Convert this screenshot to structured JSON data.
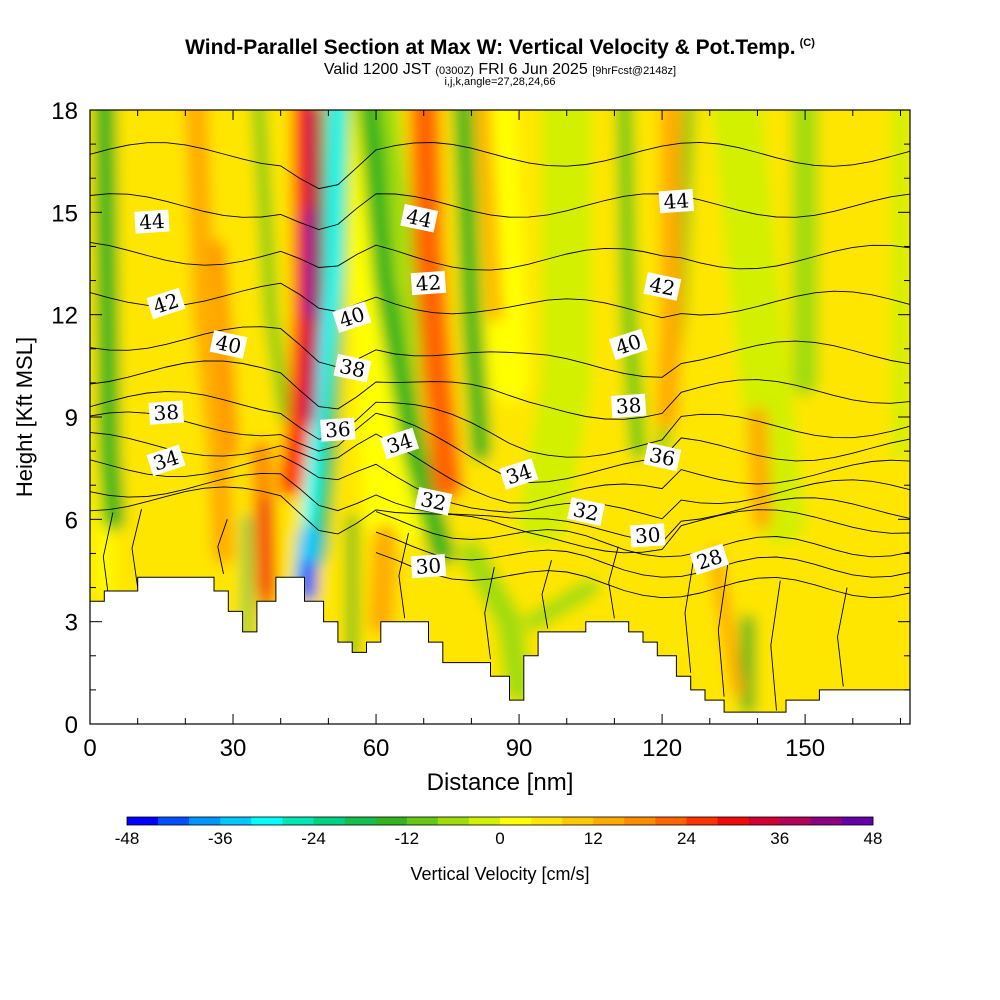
{
  "title": {
    "main": "Wind-Parallel Section at Max W: Vertical Velocity & Pot.Temp.",
    "copyright": "(C)",
    "valid_prefix": "Valid 1200 JST",
    "valid_utc": "(0300Z)",
    "valid_date": "FRI 6 Jun 2025",
    "forecast": "[9hrFcst@2148z]",
    "indices": "i,j,k,angle=27,28,24,66"
  },
  "chart_data": {
    "type": "heatmap",
    "xlabel": "Distance [nm]",
    "ylabel": "Height [Kft MSL]",
    "xlim": [
      0,
      172
    ],
    "ylim": [
      0,
      18
    ],
    "xticks": [
      0,
      30,
      60,
      90,
      120,
      150
    ],
    "yticks": [
      0,
      3,
      6,
      9,
      12,
      15,
      18
    ],
    "colorbar": {
      "label": "Vertical Velocity [cm/s]",
      "range": [
        -48,
        48
      ],
      "ticks": [
        -48,
        -36,
        -24,
        -12,
        0,
        12,
        24,
        36,
        48
      ],
      "colors": [
        "#0000ff",
        "#0050ff",
        "#0096ff",
        "#00c8ff",
        "#00ffff",
        "#00e6b4",
        "#00d282",
        "#14be50",
        "#32b41e",
        "#64c814",
        "#a0dc0a",
        "#d2f000",
        "#ffff00",
        "#ffe600",
        "#ffc800",
        "#ffaa00",
        "#ff8c00",
        "#ff6400",
        "#ff3200",
        "#f00a0a",
        "#d20032",
        "#b4005a",
        "#8c0082",
        "#6400aa"
      ]
    },
    "w_updraft_columns": [
      {
        "x": 48,
        "peak_cm_s": 48
      },
      {
        "x": 37,
        "peak_cm_s": 30
      },
      {
        "x": 71,
        "peak_cm_s": 20
      },
      {
        "x": 82,
        "peak_cm_s": 14
      },
      {
        "x": 25,
        "peak_cm_s": 12
      },
      {
        "x": 122,
        "peak_cm_s": 12
      }
    ],
    "w_downdraft_columns": [
      {
        "x": 51,
        "peak_cm_s": -36
      },
      {
        "x": 46,
        "peak_cm_s": -48
      },
      {
        "x": 58,
        "peak_cm_s": -12
      },
      {
        "x": 64,
        "peak_cm_s": -10
      },
      {
        "x": 78,
        "peak_cm_s": -14
      },
      {
        "x": 113,
        "peak_cm_s": -12
      },
      {
        "x": 5,
        "peak_cm_s": -14
      },
      {
        "x": 138,
        "peak_cm_s": -14
      }
    ],
    "theta_contour_labels": [
      {
        "value": "44",
        "x": 13,
        "y": 14.7
      },
      {
        "value": "42",
        "x": 16,
        "y": 12.3
      },
      {
        "value": "40",
        "x": 29,
        "y": 11.1
      },
      {
        "value": "38",
        "x": 16,
        "y": 9.1
      },
      {
        "value": "34",
        "x": 16,
        "y": 7.7
      },
      {
        "value": "44",
        "x": 69,
        "y": 14.8
      },
      {
        "value": "42",
        "x": 71,
        "y": 12.9
      },
      {
        "value": "40",
        "x": 55,
        "y": 11.9
      },
      {
        "value": "38",
        "x": 55,
        "y": 10.4
      },
      {
        "value": "36",
        "x": 52,
        "y": 8.6
      },
      {
        "value": "34",
        "x": 65,
        "y": 8.2
      },
      {
        "value": "32",
        "x": 72,
        "y": 6.5
      },
      {
        "value": "30",
        "x": 71,
        "y": 4.6
      },
      {
        "value": "34",
        "x": 90,
        "y": 7.3
      },
      {
        "value": "32",
        "x": 104,
        "y": 6.2
      },
      {
        "value": "30",
        "x": 117,
        "y": 5.5
      },
      {
        "value": "28",
        "x": 130,
        "y": 4.8
      },
      {
        "value": "36",
        "x": 120,
        "y": 7.8
      },
      {
        "value": "38",
        "x": 113,
        "y": 9.3
      },
      {
        "value": "40",
        "x": 113,
        "y": 11.1
      },
      {
        "value": "42",
        "x": 120,
        "y": 12.8
      },
      {
        "value": "44",
        "x": 123,
        "y": 15.3
      }
    ],
    "terrain_height_kft": [
      [
        0,
        3.6
      ],
      [
        3,
        3.6
      ],
      [
        3,
        3.9
      ],
      [
        10,
        3.9
      ],
      [
        10,
        4.3
      ],
      [
        26,
        4.3
      ],
      [
        26,
        3.9
      ],
      [
        29,
        3.9
      ],
      [
        29,
        3.3
      ],
      [
        32,
        3.3
      ],
      [
        32,
        2.7
      ],
      [
        35,
        2.7
      ],
      [
        35,
        3.6
      ],
      [
        39,
        3.6
      ],
      [
        39,
        4.3
      ],
      [
        45,
        4.3
      ],
      [
        45,
        3.6
      ],
      [
        49,
        3.6
      ],
      [
        49,
        3.0
      ],
      [
        52,
        3.0
      ],
      [
        52,
        2.4
      ],
      [
        55,
        2.4
      ],
      [
        55,
        2.1
      ],
      [
        58,
        2.1
      ],
      [
        58,
        2.4
      ],
      [
        61,
        2.4
      ],
      [
        61,
        3.0
      ],
      [
        71,
        3.0
      ],
      [
        71,
        2.4
      ],
      [
        74,
        2.4
      ],
      [
        74,
        1.8
      ],
      [
        84,
        1.8
      ],
      [
        84,
        1.4
      ],
      [
        88,
        1.4
      ],
      [
        88,
        0.7
      ],
      [
        91,
        0.7
      ],
      [
        91,
        2.0
      ],
      [
        94,
        2.0
      ],
      [
        94,
        2.7
      ],
      [
        104,
        2.7
      ],
      [
        104,
        3.0
      ],
      [
        113,
        3.0
      ],
      [
        113,
        2.7
      ],
      [
        116,
        2.7
      ],
      [
        116,
        2.4
      ],
      [
        119,
        2.4
      ],
      [
        119,
        2.0
      ],
      [
        123,
        2.0
      ],
      [
        123,
        1.4
      ],
      [
        126,
        1.4
      ],
      [
        126,
        1.0
      ],
      [
        129,
        1.0
      ],
      [
        129,
        0.7
      ],
      [
        133,
        0.7
      ],
      [
        133,
        0.35
      ],
      [
        146,
        0.35
      ],
      [
        146,
        0.7
      ],
      [
        153,
        0.7
      ],
      [
        153,
        1.0
      ],
      [
        172,
        1.0
      ]
    ]
  }
}
